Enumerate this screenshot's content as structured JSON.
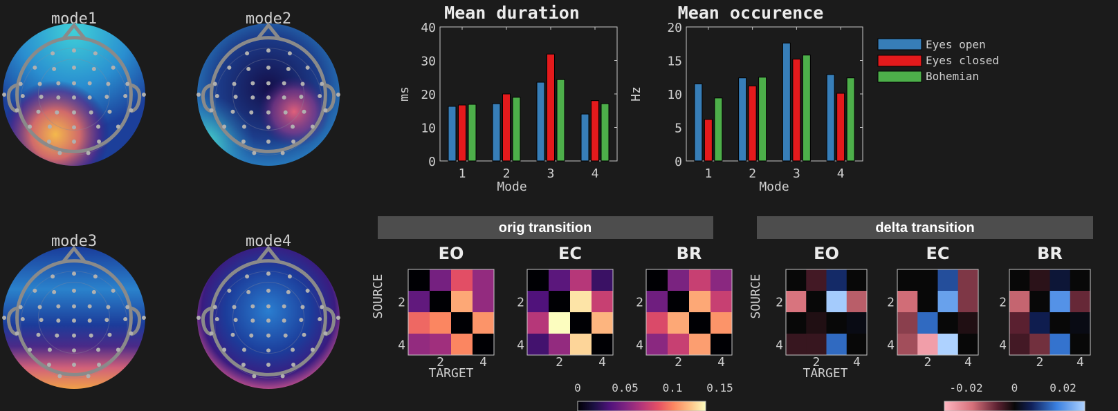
{
  "colors": {
    "background": "#1b1b1b",
    "eyes_open": "#377eb8",
    "eyes_closed": "#e41a1c",
    "bohemian": "#4daf4a",
    "panel_header": "#4d4d4d"
  },
  "topomaps": [
    {
      "title": "mode1"
    },
    {
      "title": "mode2"
    },
    {
      "title": "mode3"
    },
    {
      "title": "mode4"
    }
  ],
  "legend": [
    "Eyes open",
    "Eyes closed",
    "Bohemian"
  ],
  "chart_data": [
    {
      "type": "bar",
      "title": "Mean duration",
      "xlabel": "Mode",
      "ylabel": "ms",
      "categories": [
        "1",
        "2",
        "3",
        "4"
      ],
      "ylim": [
        0,
        40
      ],
      "yticks": [
        "0",
        "10",
        "20",
        "30",
        "40"
      ],
      "series": [
        {
          "name": "Eyes open",
          "values": [
            16.3,
            17.1,
            23.5,
            14.0
          ]
        },
        {
          "name": "Eyes closed",
          "values": [
            16.7,
            20.0,
            31.9,
            18.0
          ]
        },
        {
          "name": "Bohemian",
          "values": [
            16.9,
            19.0,
            24.3,
            17.1
          ]
        }
      ],
      "legend": "right",
      "grid": false
    },
    {
      "type": "bar",
      "title": "Mean occurence",
      "xlabel": "Mode",
      "ylabel": "Hz",
      "categories": [
        "1",
        "2",
        "3",
        "4"
      ],
      "ylim": [
        0,
        20
      ],
      "yticks": [
        "0",
        "5",
        "10",
        "15",
        "20"
      ],
      "series": [
        {
          "name": "Eyes open",
          "values": [
            11.5,
            12.4,
            17.6,
            12.9
          ]
        },
        {
          "name": "Eyes closed",
          "values": [
            6.2,
            11.2,
            15.2,
            10.1
          ]
        },
        {
          "name": "Bohemian",
          "values": [
            9.4,
            12.5,
            15.8,
            12.4
          ]
        }
      ],
      "legend": "right",
      "grid": false
    },
    {
      "type": "heatmap",
      "panel_title": "orig transition",
      "xlabel": "TARGET",
      "ylabel": "SOURCE",
      "ticks": [
        "2",
        "4"
      ],
      "colormap": "magma",
      "clim": [
        0,
        0.135
      ],
      "colorbar_ticks": [
        "0",
        "0.05",
        "0.1",
        "0.15"
      ],
      "matrices": [
        {
          "title": "EO",
          "values": [
            [
              0,
              0.047,
              0.084,
              0.057
            ],
            [
              0.04,
              0,
              0.111,
              0.057
            ],
            [
              0.092,
              0.101,
              0,
              0.105
            ],
            [
              0.057,
              0.061,
              0.101,
              0
            ]
          ]
        },
        {
          "title": "EC",
          "values": [
            [
              0,
              0.038,
              0.068,
              0.027
            ],
            [
              0.034,
              0,
              0.128,
              0.074
            ],
            [
              0.068,
              0.135,
              0,
              0.115
            ],
            [
              0.03,
              0.057,
              0.124,
              0
            ]
          ]
        },
        {
          "title": "BR",
          "values": [
            [
              0,
              0.049,
              0.074,
              0.054
            ],
            [
              0.045,
              0,
              0.111,
              0.074
            ],
            [
              0.081,
              0.111,
              0,
              0.105
            ],
            [
              0.054,
              0.074,
              0.108,
              0
            ]
          ]
        }
      ]
    },
    {
      "type": "heatmap",
      "panel_title": "delta transition",
      "xlabel": "TARGET",
      "ylabel": "SOURCE",
      "ticks": [
        "2",
        "4"
      ],
      "colormap": "pink-black-blue",
      "clim": [
        -0.029,
        0.029
      ],
      "colorbar_ticks": [
        "-0.02",
        "0",
        "0.02"
      ],
      "matrices": [
        {
          "title": "EO",
          "values": [
            [
              0,
              -0.005,
              0.008,
              0
            ],
            [
              -0.018,
              0,
              0.028,
              -0.015
            ],
            [
              0,
              -0.002,
              0,
              0.001
            ],
            [
              -0.004,
              -0.004,
              0.015,
              0
            ]
          ]
        },
        {
          "title": "EC",
          "values": [
            [
              0,
              0,
              0.012,
              -0.01
            ],
            [
              -0.017,
              0,
              0.022,
              -0.01
            ],
            [
              -0.011,
              0.015,
              0,
              -0.002
            ],
            [
              -0.013,
              -0.025,
              0.029,
              0
            ]
          ]
        },
        {
          "title": "BR",
          "values": [
            [
              0,
              -0.003,
              0.004,
              0
            ],
            [
              -0.016,
              0,
              0.02,
              -0.008
            ],
            [
              -0.007,
              0.006,
              0,
              0.001
            ],
            [
              -0.005,
              -0.009,
              0.016,
              0
            ]
          ]
        }
      ]
    }
  ]
}
